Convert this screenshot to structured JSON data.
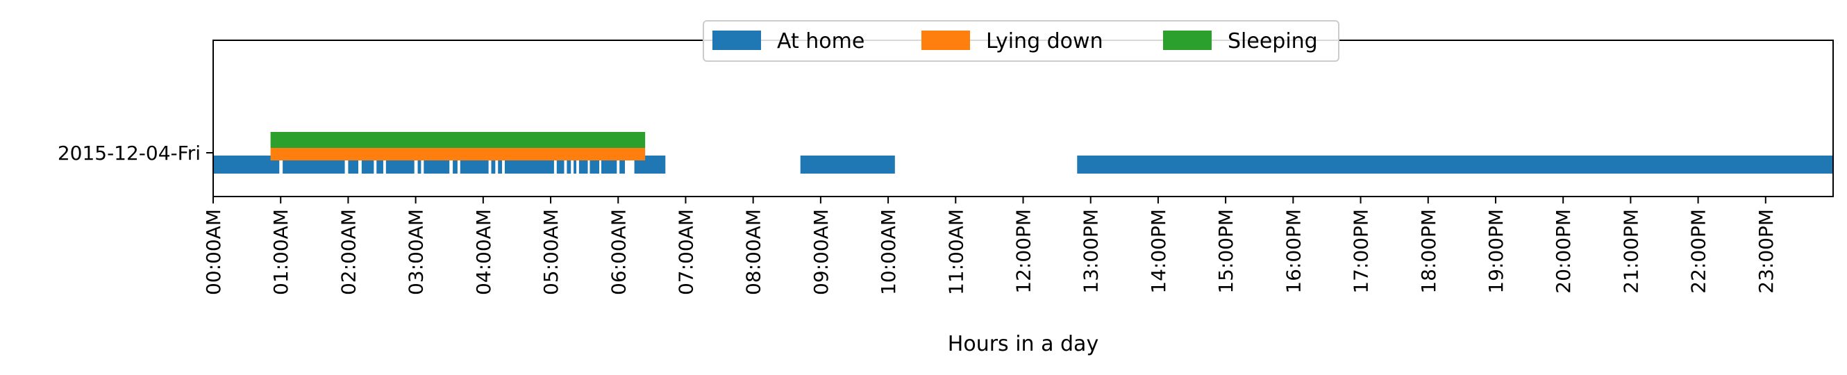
{
  "chart_data": {
    "type": "timeline",
    "xlabel": "Hours in a day",
    "xlim": [
      0,
      24
    ],
    "categories": [
      "2015-12-04-Fri"
    ],
    "x_tick_values": [
      0,
      1,
      2,
      3,
      4,
      5,
      6,
      7,
      8,
      9,
      10,
      11,
      12,
      13,
      14,
      15,
      16,
      17,
      18,
      19,
      20,
      21,
      22,
      23
    ],
    "x_tick_labels": [
      "00:00AM",
      "01:00AM",
      "02:00AM",
      "03:00AM",
      "04:00AM",
      "05:00AM",
      "06:00AM",
      "07:00AM",
      "08:00AM",
      "09:00AM",
      "10:00AM",
      "11:00AM",
      "12:00PM",
      "13:00PM",
      "14:00PM",
      "15:00PM",
      "16:00PM",
      "17:00PM",
      "18:00PM",
      "19:00PM",
      "20:00PM",
      "21:00PM",
      "22:00PM",
      "23:00PM"
    ],
    "legend_position": "top-center",
    "series": [
      {
        "name": "At home",
        "color": "#1f77b4",
        "intervals": [
          [
            0.0,
            0.98
          ],
          [
            1.03,
            1.95
          ],
          [
            2.0,
            2.15
          ],
          [
            2.2,
            2.38
          ],
          [
            2.42,
            2.52
          ],
          [
            2.56,
            2.98
          ],
          [
            3.03,
            3.08
          ],
          [
            3.12,
            3.5
          ],
          [
            3.55,
            3.62
          ],
          [
            3.66,
            4.08
          ],
          [
            4.12,
            4.18
          ],
          [
            4.22,
            4.28
          ],
          [
            4.32,
            5.05
          ],
          [
            5.09,
            5.2
          ],
          [
            5.24,
            5.3
          ],
          [
            5.34,
            5.38
          ],
          [
            5.42,
            5.55
          ],
          [
            5.58,
            5.72
          ],
          [
            5.75,
            5.98
          ],
          [
            6.02,
            6.1
          ],
          [
            6.24,
            6.7
          ],
          [
            8.7,
            10.1
          ],
          [
            12.8,
            24.0
          ]
        ]
      },
      {
        "name": "Lying down",
        "color": "#ff7f0e",
        "intervals": [
          [
            0.85,
            6.4
          ]
        ]
      },
      {
        "name": "Sleeping",
        "color": "#2ca02c",
        "intervals": [
          [
            0.85,
            6.4
          ]
        ]
      }
    ]
  }
}
